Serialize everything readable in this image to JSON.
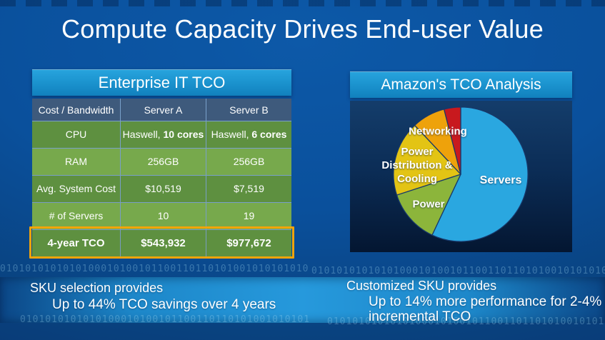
{
  "slide_title": "Compute Capacity Drives End-user Value",
  "left_panel": {
    "header": "Enterprise IT TCO",
    "cpu_prefix": "Haswell,",
    "cpu_a_bold": "10 cores",
    "cpu_b_bold": "6 cores"
  },
  "right_panel": {
    "header": "Amazon's TCO Analysis"
  },
  "footer": {
    "left": {
      "line1": "SKU selection provides",
      "line2": "Up to 44% TCO savings over 4 years"
    },
    "right": {
      "line1": "Customized SKU provides",
      "line2": "Up to 14% more performance for 2-4% incremental TCO"
    }
  },
  "binary_texture": "010101010101010001010010110011011010100101010101010100010100101100110110101001010101010101000101001011001101101010010101010101",
  "colors": {
    "header_bar_blue": "#1b93ce",
    "table_header_blue": "#3e5a7c",
    "row_green_dark": "#5e9040",
    "row_green_light": "#77a94c",
    "highlight_orange": "#f3a40a"
  },
  "chart_data": [
    {
      "type": "table",
      "title": "Enterprise IT TCO",
      "columns": [
        "Cost / Bandwidth",
        "Server A",
        "Server B"
      ],
      "rows": [
        [
          "CPU",
          "Haswell, 10 cores",
          "Haswell, 6 cores"
        ],
        [
          "RAM",
          "256GB",
          "256GB"
        ],
        [
          "Avg. System Cost",
          "$10,519",
          "$7,519"
        ],
        [
          "# of Servers",
          "10",
          "19"
        ],
        [
          "4-year TCO",
          "$543,932",
          "$977,672"
        ]
      ],
      "highlighted_row": "4-year TCO"
    },
    {
      "type": "pie",
      "title": "Amazon's TCO Analysis",
      "labels": [
        "Servers",
        "Power",
        "Power Distribution & Cooling",
        "Networking",
        ""
      ],
      "values": [
        57,
        13,
        18,
        8,
        4
      ],
      "unit": "percent (estimated from slice angles)",
      "colors": [
        "#2aa7e0",
        "#8cb53b",
        "#e3c414",
        "#eea20b",
        "#c8191e"
      ],
      "start_angle_deg": 0,
      "direction": "clockwise",
      "legend_position": "labels-on-chart",
      "note": "red slice is unlabeled on the slide"
    }
  ]
}
